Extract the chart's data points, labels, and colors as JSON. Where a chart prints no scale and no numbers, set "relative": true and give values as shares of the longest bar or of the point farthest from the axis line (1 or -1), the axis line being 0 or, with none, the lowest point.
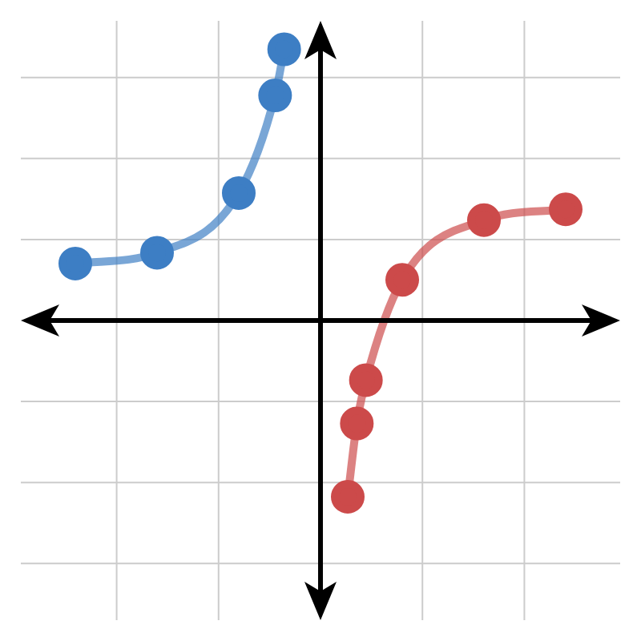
{
  "chart_data": {
    "type": "line",
    "relative": true,
    "grid": true,
    "marker": "circle",
    "line_style": "solid",
    "legend": false,
    "categories": [
      null,
      null,
      null,
      null,
      null,
      null,
      null,
      null,
      null,
      null,
      null,
      null,
      null,
      null,
      null,
      null,
      null,
      null,
      null,
      null,
      null,
      null,
      null,
      null,
      null,
      null,
      null,
      null,
      null,
      null,
      null,
      null,
      null,
      null,
      null,
      null,
      null,
      null,
      null,
      null,
      null,
      null,
      null,
      null,
      null,
      null,
      null,
      null,
      null,
      null,
      null,
      null,
      null,
      null,
      null,
      null,
      null,
      null,
      null,
      null,
      null,
      null,
      null,
      null,
      null,
      null,
      null
    ],
    "series": [
      {
        "color": "#3d7ec4",
        "values": [
          null,
          null,
          null,
          null,
          null,
          null,
          0.21,
          null,
          null,
          null,
          null,
          null,
          null,
          null,
          null,
          0.25,
          null,
          null,
          null,
          null,
          null,
          null,
          null,
          null,
          0.47,
          null,
          null,
          null,
          0.83,
          1,
          null,
          null,
          null,
          null,
          null,
          null,
          null,
          null,
          null,
          null,
          null,
          null,
          null,
          null,
          null,
          null,
          null,
          null,
          null,
          null,
          null,
          null,
          null,
          null,
          null,
          null,
          null,
          null,
          null,
          null,
          null,
          null,
          null,
          null,
          null,
          null,
          null
        ]
      },
      {
        "color": "#cc4a4a",
        "values": [
          null,
          null,
          null,
          null,
          null,
          null,
          null,
          null,
          null,
          null,
          null,
          null,
          null,
          null,
          null,
          null,
          null,
          null,
          null,
          null,
          null,
          null,
          null,
          null,
          null,
          null,
          null,
          null,
          null,
          null,
          null,
          null,
          null,
          null,
          null,
          null,
          -0.65,
          -0.38,
          -0.22,
          null,
          null,
          null,
          0.15,
          null,
          null,
          null,
          null,
          null,
          null,
          null,
          null,
          0.37,
          null,
          null,
          null,
          null,
          null,
          null,
          null,
          null,
          0.41,
          null,
          null,
          null,
          null,
          null,
          null
        ]
      }
    ]
  }
}
